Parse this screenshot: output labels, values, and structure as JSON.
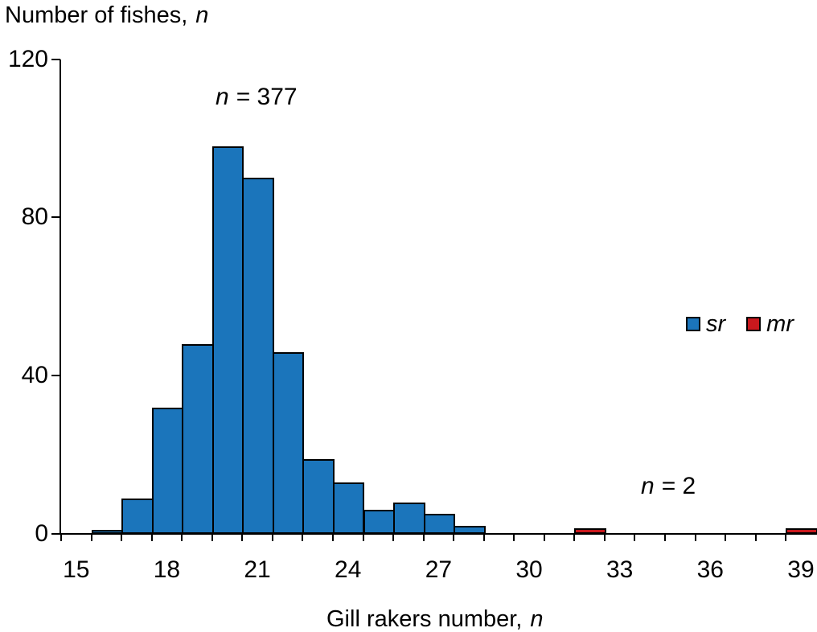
{
  "y_axis": {
    "title": "Number of fishes,",
    "title_symbol": "n"
  },
  "x_axis": {
    "title": "Gill rakers number,",
    "title_symbol": "n"
  },
  "legend": {
    "items": [
      {
        "label": "sr",
        "color": "#1b75bb"
      },
      {
        "label": "mr",
        "color": "#c9181d"
      }
    ]
  },
  "annotations": {
    "sr_count": {
      "symbol": "n",
      "text": "= 377"
    },
    "mr_count": {
      "symbol": "n",
      "text": "= 2"
    }
  },
  "chart_data": {
    "type": "bar",
    "subtype": "histogram",
    "title": "",
    "xlabel": "Gill rakers number, n",
    "ylabel": "Number of fishes, n",
    "x_tick_labels": [
      15,
      18,
      21,
      24,
      27,
      30,
      33,
      36,
      39
    ],
    "y_tick_labels": [
      0,
      40,
      80,
      120
    ],
    "xlim": [
      14.5,
      39.5
    ],
    "ylim": [
      0,
      120
    ],
    "bin_width": 1,
    "grid": false,
    "legend_position": "right-middle",
    "series": [
      {
        "name": "sr",
        "color": "#1b75bb",
        "n_total": 377,
        "points": [
          [
            16,
            1
          ],
          [
            17,
            9
          ],
          [
            18,
            32
          ],
          [
            19,
            48
          ],
          [
            20,
            98
          ],
          [
            21,
            90
          ],
          [
            22,
            46
          ],
          [
            23,
            19
          ],
          [
            24,
            13
          ],
          [
            25,
            6
          ],
          [
            26,
            8
          ],
          [
            27,
            5
          ],
          [
            28,
            2
          ]
        ]
      },
      {
        "name": "mr",
        "color": "#c9181d",
        "n_total": 2,
        "points": [
          [
            32,
            1
          ],
          [
            39,
            1
          ]
        ]
      }
    ]
  }
}
